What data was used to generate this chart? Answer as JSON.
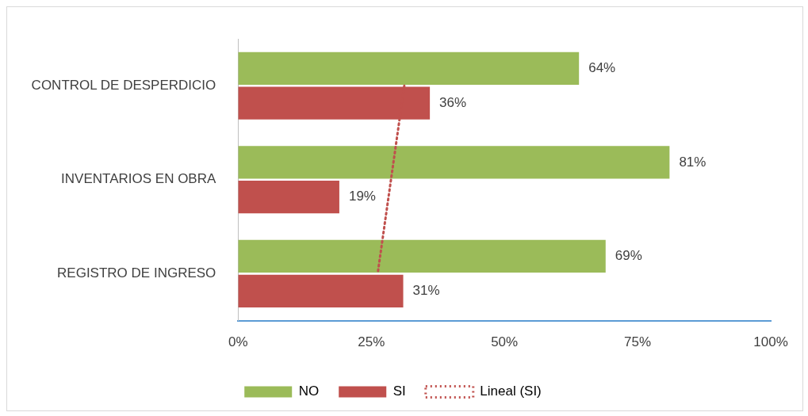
{
  "chart_data": {
    "type": "bar",
    "orientation": "horizontal",
    "categories": [
      "CONTROL DE DESPERDICIO",
      "INVENTARIOS EN OBRA",
      "REGISTRO DE INGRESO"
    ],
    "series": [
      {
        "name": "NO",
        "color": "#9bbb59",
        "values": [
          64,
          81,
          69
        ],
        "value_labels": [
          "64%",
          "81%",
          "69%"
        ]
      },
      {
        "name": "SI",
        "color": "#c0504d",
        "values": [
          36,
          19,
          31
        ],
        "value_labels": [
          "36%",
          "19%",
          "31%"
        ]
      },
      {
        "name": "Lineal (SI)",
        "type": "line",
        "color": "#c0504d",
        "line_style": "dotted",
        "marker": "none",
        "values": [
          31.2,
          28.7,
          26.2
        ]
      }
    ],
    "xlim": [
      0,
      100
    ],
    "xticks": [
      {
        "value": 0,
        "label": "0%"
      },
      {
        "value": 25,
        "label": "25%"
      },
      {
        "value": 50,
        "label": "50%"
      },
      {
        "value": 75,
        "label": "75%"
      },
      {
        "value": 100,
        "label": "100%"
      }
    ],
    "grid": false,
    "legend": "bottom"
  }
}
